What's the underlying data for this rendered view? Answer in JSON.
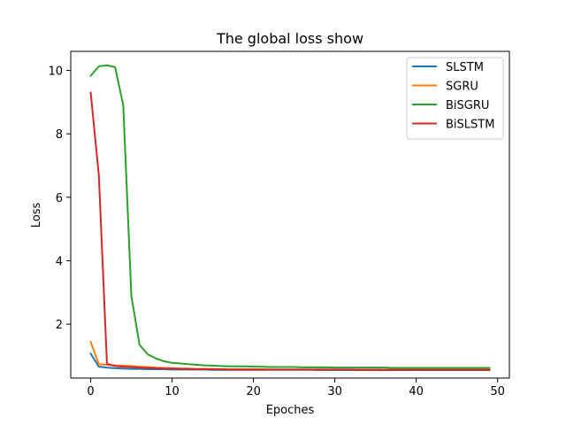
{
  "chart_data": {
    "type": "line",
    "title": "The global loss show",
    "xlabel": "Epoches",
    "ylabel": "Loss",
    "xlim": [
      -2.45,
      51.45
    ],
    "ylim": [
      0.3,
      10.6
    ],
    "xticks": [
      0,
      10,
      20,
      30,
      40,
      50
    ],
    "yticks": [
      2,
      4,
      6,
      8,
      10
    ],
    "grid": false,
    "legend_position": "top-right",
    "x": [
      0,
      1,
      2,
      3,
      4,
      5,
      6,
      7,
      8,
      9,
      10,
      11,
      12,
      13,
      14,
      15,
      16,
      17,
      18,
      19,
      20,
      21,
      22,
      23,
      24,
      25,
      26,
      27,
      28,
      29,
      30,
      31,
      32,
      33,
      34,
      35,
      36,
      37,
      38,
      39,
      40,
      41,
      42,
      43,
      44,
      45,
      46,
      47,
      48,
      49
    ],
    "series": [
      {
        "name": "SLSTM",
        "color": "#1f77b4",
        "values": [
          1.07,
          0.66,
          0.63,
          0.61,
          0.6,
          0.59,
          0.59,
          0.58,
          0.58,
          0.58,
          0.57,
          0.57,
          0.57,
          0.57,
          0.57,
          0.56,
          0.56,
          0.56,
          0.56,
          0.56,
          0.56,
          0.56,
          0.56,
          0.56,
          0.56,
          0.56,
          0.56,
          0.56,
          0.55,
          0.55,
          0.55,
          0.55,
          0.55,
          0.55,
          0.55,
          0.55,
          0.55,
          0.55,
          0.55,
          0.55,
          0.55,
          0.55,
          0.55,
          0.55,
          0.55,
          0.55,
          0.55,
          0.55,
          0.55,
          0.55
        ]
      },
      {
        "name": "SGRU",
        "color": "#ff7f0e",
        "values": [
          1.44,
          0.74,
          0.72,
          0.7,
          0.69,
          0.68,
          0.66,
          0.65,
          0.63,
          0.62,
          0.61,
          0.6,
          0.6,
          0.59,
          0.59,
          0.59,
          0.58,
          0.58,
          0.58,
          0.58,
          0.58,
          0.58,
          0.57,
          0.57,
          0.57,
          0.57,
          0.57,
          0.57,
          0.57,
          0.57,
          0.57,
          0.57,
          0.57,
          0.57,
          0.57,
          0.57,
          0.57,
          0.57,
          0.57,
          0.57,
          0.57,
          0.57,
          0.57,
          0.57,
          0.57,
          0.57,
          0.57,
          0.57,
          0.57,
          0.57
        ]
      },
      {
        "name": "BiSGRU",
        "color": "#2ca02c",
        "values": [
          9.83,
          10.13,
          10.16,
          10.1,
          8.9,
          2.88,
          1.35,
          1.05,
          0.92,
          0.83,
          0.78,
          0.76,
          0.74,
          0.72,
          0.7,
          0.69,
          0.68,
          0.67,
          0.67,
          0.67,
          0.66,
          0.66,
          0.65,
          0.65,
          0.65,
          0.65,
          0.64,
          0.64,
          0.64,
          0.64,
          0.63,
          0.63,
          0.63,
          0.63,
          0.63,
          0.63,
          0.63,
          0.62,
          0.62,
          0.62,
          0.62,
          0.62,
          0.62,
          0.62,
          0.62,
          0.62,
          0.62,
          0.62,
          0.62,
          0.62
        ]
      },
      {
        "name": "BiSLSTM",
        "color": "#d62728",
        "values": [
          9.3,
          6.7,
          0.75,
          0.68,
          0.66,
          0.65,
          0.63,
          0.62,
          0.61,
          0.6,
          0.6,
          0.59,
          0.59,
          0.58,
          0.58,
          0.58,
          0.58,
          0.57,
          0.57,
          0.57,
          0.57,
          0.57,
          0.57,
          0.57,
          0.57,
          0.57,
          0.57,
          0.57,
          0.57,
          0.57,
          0.57,
          0.57,
          0.57,
          0.56,
          0.56,
          0.56,
          0.56,
          0.56,
          0.56,
          0.56,
          0.56,
          0.56,
          0.56,
          0.56,
          0.56,
          0.56,
          0.56,
          0.56,
          0.56,
          0.56
        ]
      }
    ]
  }
}
